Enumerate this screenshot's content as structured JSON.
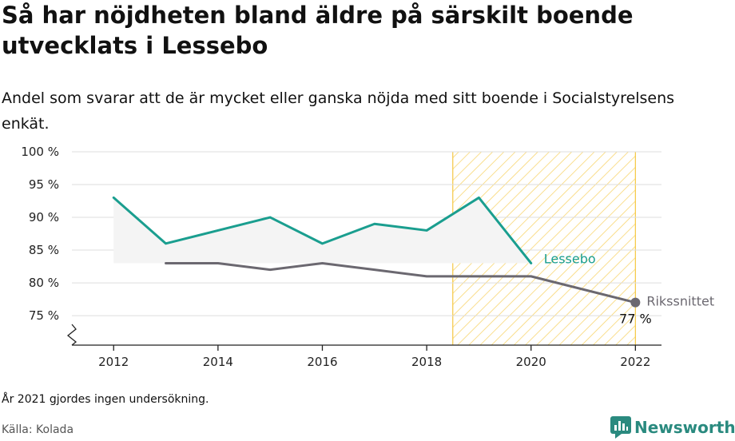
{
  "header": {
    "title": "Så har nöjdheten bland äldre på särskilt boende utvecklats i Lessebo",
    "subtitle": "Andel som svarar att de är mycket eller ganska nöjda med sitt boende i Socialstyrelsens enkät."
  },
  "footer": {
    "note": "År 2021 gjordes ingen undersökning.",
    "source": "Källa: Kolada",
    "brand": "Newsworthy"
  },
  "colors": {
    "lessebo": "#1a9e8f",
    "riket": "#6b6870",
    "highlight": "#f5c842",
    "band": "#f4f4f4",
    "grid": "#dddddd",
    "brand": "#2a8a7f"
  },
  "chart_data": {
    "type": "line",
    "x": [
      2012,
      2013,
      2014,
      2015,
      2016,
      2017,
      2018,
      2019,
      2020,
      2022
    ],
    "ylim": [
      70.5,
      100
    ],
    "xlim": [
      2011.2,
      2022.5
    ],
    "yticks": [
      75,
      80,
      85,
      90,
      95,
      100
    ],
    "ytick_labels": [
      "75 %",
      "80 %",
      "85 %",
      "90 %",
      "95 %",
      "100 %"
    ],
    "xticks": [
      2012,
      2014,
      2016,
      2018,
      2020,
      2022
    ],
    "xtick_labels": [
      "2012",
      "2014",
      "2016",
      "2018",
      "2020",
      "2022"
    ],
    "highlight_range": [
      2018.5,
      2022
    ],
    "series": [
      {
        "name": "Lessebo",
        "x": [
          2012,
          2013,
          2014,
          2015,
          2016,
          2017,
          2018,
          2019,
          2020
        ],
        "values": [
          93,
          86,
          88,
          90,
          86,
          89,
          88,
          93,
          83
        ]
      },
      {
        "name": "Rikssnittet",
        "x": [
          2013,
          2014,
          2015,
          2016,
          2017,
          2018,
          2019,
          2020,
          2022
        ],
        "values": [
          83,
          83,
          82,
          83,
          82,
          81,
          81,
          81,
          77
        ]
      }
    ],
    "end_label": "77 %"
  }
}
